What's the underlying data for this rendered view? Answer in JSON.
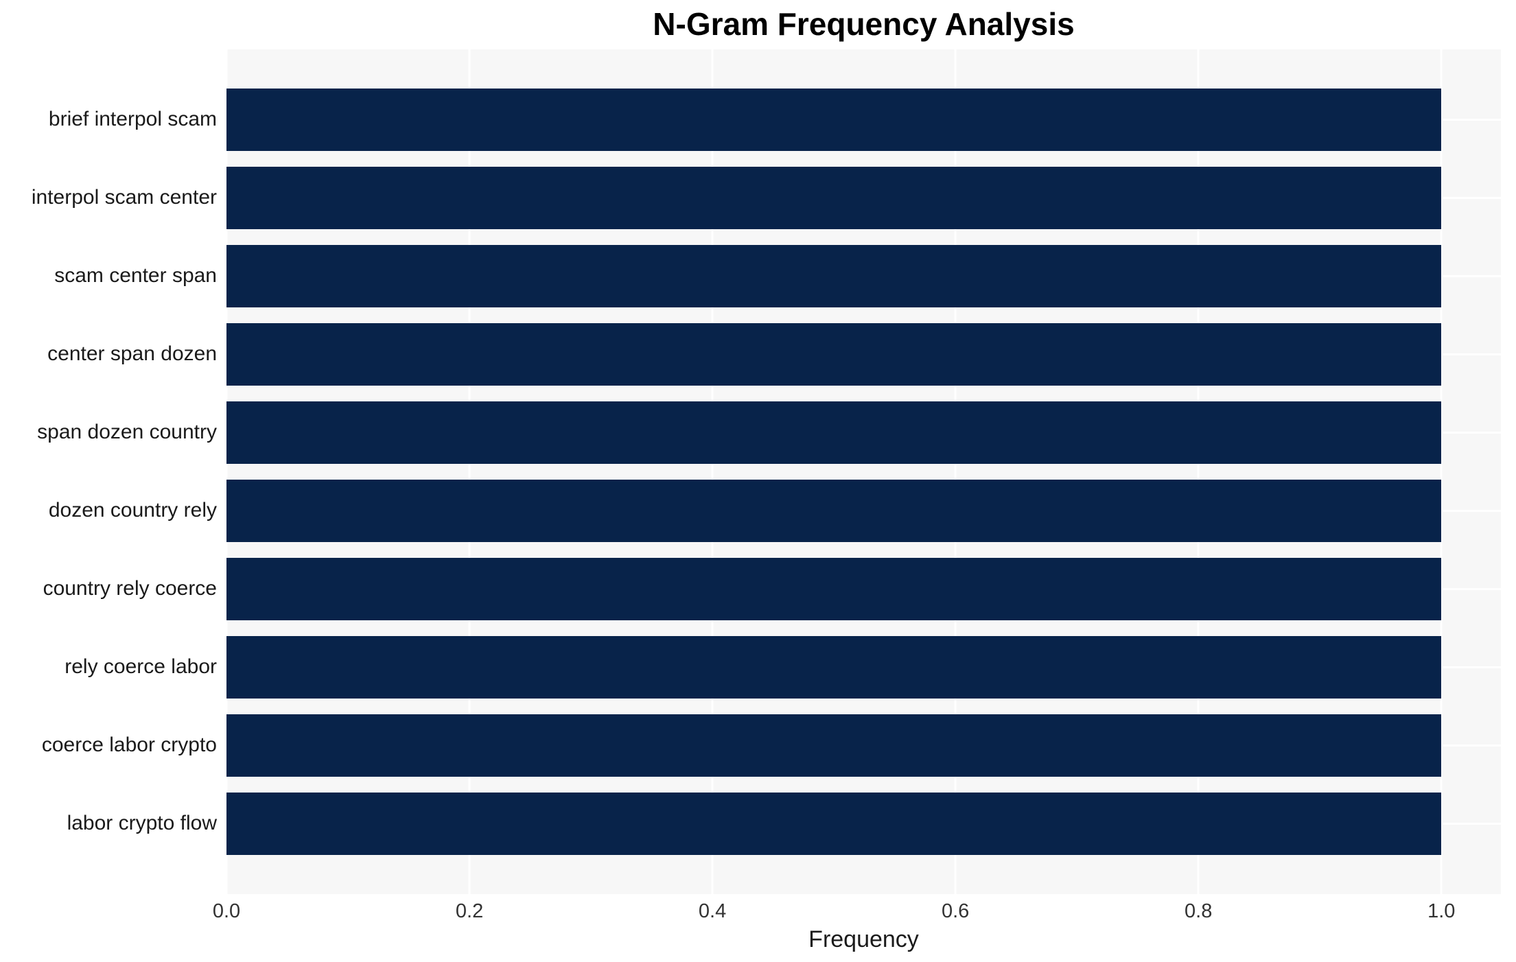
{
  "chart_data": {
    "type": "bar",
    "orientation": "horizontal",
    "title": "N-Gram Frequency Analysis",
    "xlabel": "Frequency",
    "ylabel": "",
    "categories": [
      "brief interpol scam",
      "interpol scam center",
      "scam center span",
      "center span dozen",
      "span dozen country",
      "dozen country rely",
      "country rely coerce",
      "rely coerce labor",
      "coerce labor crypto",
      "labor crypto flow"
    ],
    "values": [
      1.0,
      1.0,
      1.0,
      1.0,
      1.0,
      1.0,
      1.0,
      1.0,
      1.0,
      1.0
    ],
    "xticks": [
      "0.0",
      "0.2",
      "0.4",
      "0.6",
      "0.8",
      "1.0"
    ],
    "xtick_values": [
      0.0,
      0.2,
      0.4,
      0.6,
      0.8,
      1.0
    ],
    "xlim": [
      0,
      1.049
    ],
    "grid": true,
    "legend": false,
    "bar_color": "#08234a",
    "plot_bg_color": "#f7f7f7",
    "grid_color": "#ffffff"
  }
}
